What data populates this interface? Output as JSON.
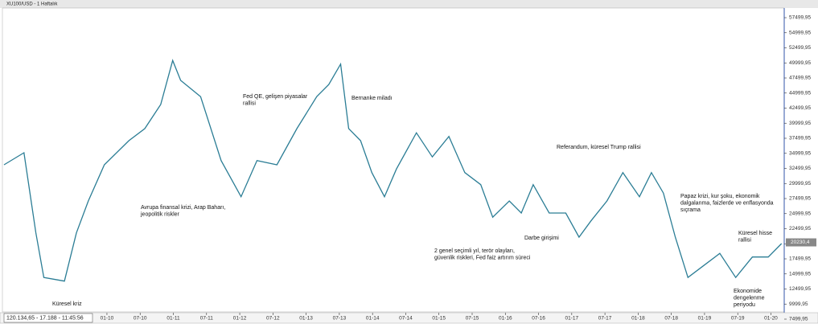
{
  "chart_data": {
    "type": "line",
    "title": "XU100/USD - 1 Haftalık",
    "info": "120.134,65 - 17.188 - 11:45:56",
    "color": "#2b7d95",
    "x": [
      2008.45,
      2008.75,
      2008.93,
      2009.05,
      2009.36,
      2009.54,
      2009.72,
      2009.96,
      2010.33,
      2010.57,
      2010.81,
      2010.99,
      2011.11,
      2011.41,
      2011.72,
      2012.02,
      2012.26,
      2012.56,
      2012.86,
      2013.16,
      2013.34,
      2013.52,
      2013.64,
      2013.82,
      2013.99,
      2014.18,
      2014.36,
      2014.66,
      2014.9,
      2015.15,
      2015.39,
      2015.63,
      2015.81,
      2016.06,
      2016.24,
      2016.42,
      2016.66,
      2016.91,
      2017.11,
      2017.29,
      2017.53,
      2017.77,
      2018.02,
      2018.2,
      2018.38,
      2018.56,
      2018.75,
      2018.99,
      2019.23,
      2019.47,
      2019.72,
      2019.96,
      2020.16
    ],
    "values": [
      33100,
      35100,
      21800,
      14400,
      13800,
      21800,
      27100,
      33100,
      37100,
      39100,
      43100,
      50400,
      47100,
      44400,
      33800,
      27800,
      33800,
      33100,
      39100,
      44400,
      46400,
      49800,
      39100,
      37100,
      31800,
      27800,
      32400,
      38400,
      34400,
      37800,
      31800,
      29800,
      24400,
      27100,
      25100,
      29800,
      25100,
      25100,
      21100,
      23800,
      27100,
      31800,
      27800,
      31800,
      28400,
      21100,
      14400,
      16400,
      18400,
      14400,
      17800,
      17800,
      20030
    ],
    "last_price": {
      "value": 20230.4,
      "label": "20230,4"
    },
    "xlim": [
      2008.45,
      2020.2
    ],
    "ylim": [
      7499.95,
      59099.95
    ],
    "xticks": [
      {
        "value": 2010,
        "label": "01-10"
      },
      {
        "value": 2010.5,
        "label": "07-10"
      },
      {
        "value": 2011,
        "label": "01-11"
      },
      {
        "value": 2011.5,
        "label": "07-11"
      },
      {
        "value": 2012,
        "label": "01-12"
      },
      {
        "value": 2012.5,
        "label": "07-12"
      },
      {
        "value": 2013,
        "label": "01-13"
      },
      {
        "value": 2013.5,
        "label": "07-13"
      },
      {
        "value": 2014,
        "label": "01-14"
      },
      {
        "value": 2014.5,
        "label": "07-14"
      },
      {
        "value": 2015,
        "label": "01-15"
      },
      {
        "value": 2015.5,
        "label": "07-15"
      },
      {
        "value": 2016,
        "label": "01-16"
      },
      {
        "value": 2016.5,
        "label": "07-16"
      },
      {
        "value": 2017,
        "label": "01-17"
      },
      {
        "value": 2017.5,
        "label": "07-17"
      },
      {
        "value": 2018,
        "label": "01-18"
      },
      {
        "value": 2018.5,
        "label": "07-18"
      },
      {
        "value": 2019,
        "label": "01-19"
      },
      {
        "value": 2019.5,
        "label": "07-19"
      },
      {
        "value": 2020,
        "label": "01-20"
      }
    ],
    "yticks": [
      {
        "value": 57499.95,
        "label": "57499,95"
      },
      {
        "value": 54999.95,
        "label": "54999,95"
      },
      {
        "value": 52499.95,
        "label": "52499,95"
      },
      {
        "value": 49999.95,
        "label": "49999,95"
      },
      {
        "value": 47499.95,
        "label": "47499,95"
      },
      {
        "value": 44999.95,
        "label": "44999,95"
      },
      {
        "value": 42499.95,
        "label": "42499,95"
      },
      {
        "value": 39999.95,
        "label": "39999,95"
      },
      {
        "value": 37499.95,
        "label": "37499,95"
      },
      {
        "value": 34999.95,
        "label": "34999,95"
      },
      {
        "value": 32499.95,
        "label": "32499,95"
      },
      {
        "value": 29999.95,
        "label": "29999,95"
      },
      {
        "value": 27499.95,
        "label": "27499,95"
      },
      {
        "value": 24999.95,
        "label": "24999,95"
      },
      {
        "value": 22499.95,
        "label": "22499,95"
      },
      {
        "value": 19999.95,
        "label": "19999,95"
      },
      {
        "value": 17499.95,
        "label": "17499,95"
      },
      {
        "value": 14999.95,
        "label": "14999,95"
      },
      {
        "value": 12499.95,
        "label": "12499,95"
      },
      {
        "value": 9999.95,
        "label": "9999,95"
      },
      {
        "value": 7499.95,
        "label": "7499,95"
      }
    ],
    "annotations": [
      [
        "Küresel kriz"
      ],
      [
        "Avrupa finansal krizi, Arap Baharı,",
        "jeopolitik riskler"
      ],
      [
        "Fed QE, gelişen piyasalar",
        "rallisi"
      ],
      [
        "Bernanke miladı"
      ],
      [
        "2 genel seçimli yıl, terör olayları,",
        "güvenlik riskleri, Fed faiz artırım süreci"
      ],
      [
        "Darbe girişimi"
      ],
      [
        "Referandum, küresel Trump rallisi"
      ],
      [
        "Papaz krizi, kur şoku, ekonomik",
        "dalgalanma, faizlerde ve enflasyonda",
        "sıçrama"
      ],
      [
        "Küresel hisse",
        "rallisi"
      ],
      [
        "Ekonomide",
        "dengelenme",
        "periyodu"
      ]
    ]
  }
}
